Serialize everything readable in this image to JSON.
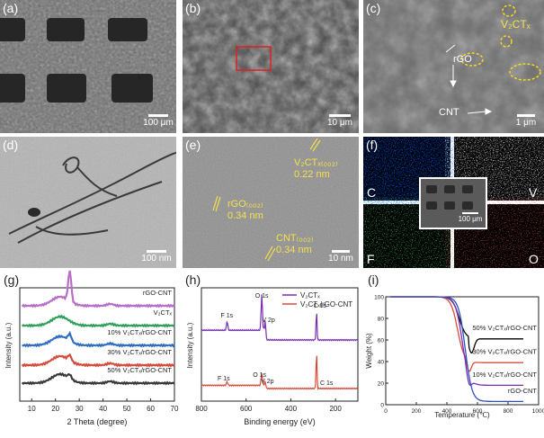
{
  "panels": {
    "a": {
      "label": "(a)",
      "scale": "100 μm"
    },
    "b": {
      "label": "(b)",
      "scale": "10 μm"
    },
    "c": {
      "label": "(c)",
      "scale": "1 μm",
      "annot_v2ctx": "V₂CTₓ",
      "annot_rgo": "rGO",
      "annot_cnt": "CNT"
    },
    "d": {
      "label": "(d)",
      "scale": "100 nm"
    },
    "e": {
      "label": "(e)",
      "scale": "10 nm",
      "v2ctx_label": "V₂CTₓ₍₀₀₂₎",
      "v2ctx_d": "0.22 nm",
      "rgo_label": "rGO₍₀₀₂₎",
      "rgo_d": "0.34 nm",
      "cnt_label": "CNT₍₀₀₂₎",
      "cnt_d": "0.34 nm"
    },
    "f": {
      "label": "(f)",
      "scale": "100 μm",
      "map_c": "C",
      "map_v": "V",
      "map_f": "F",
      "map_o": "O"
    }
  },
  "chart_data": [
    {
      "panel": "(g)",
      "type": "line",
      "xlabel": "2 Theta (degree)",
      "ylabel": "Intensity (a.u.)",
      "xlim": [
        5,
        70
      ],
      "xticks": [
        10,
        20,
        30,
        40,
        50,
        60,
        70
      ],
      "series": [
        {
          "name": "rGO-CNT",
          "color": "#b86ec8",
          "offset": 4
        },
        {
          "name": "V₂CTₓ",
          "color": "#2fa05a",
          "offset": 3
        },
        {
          "name": "10% V₂CTₓ/rGO-CNT",
          "color": "#2f6fc0",
          "offset": 2
        },
        {
          "name": "30% V₂CTₓ/rGO-CNT",
          "color": "#d94a3a",
          "offset": 1
        },
        {
          "name": "50% V₂CTₓ/rGO-CNT",
          "color": "#3a3a3a",
          "offset": 0
        }
      ]
    },
    {
      "panel": "(h)",
      "type": "line",
      "xlabel": "Binding energy (eV)",
      "ylabel": "Intensity (a.u.)",
      "xlim": [
        800,
        100
      ],
      "xticks": [
        800,
        600,
        400,
        200
      ],
      "series": [
        {
          "name": "V₂CTₓ",
          "color": "#7a2fb0"
        },
        {
          "name": "V₂CTₓ/rGO-CNT",
          "color": "#d94a3a"
        }
      ],
      "peaks_top": [
        "F 1s",
        "O 1s",
        "V 2p",
        "C 1s"
      ],
      "peaks_bottom": [
        "F 1s",
        "O 1s",
        "V 2p",
        "C 1s"
      ]
    },
    {
      "panel": "(i)",
      "type": "line",
      "xlabel": "Temperature (℃)",
      "ylabel": "Weight (%)",
      "xlim": [
        0,
        1000
      ],
      "ylim": [
        0,
        100
      ],
      "xticks": [
        0,
        200,
        400,
        600,
        800,
        1000
      ],
      "yticks": [
        0,
        20,
        40,
        60,
        80,
        100
      ],
      "series": [
        {
          "name": "50% V₂CTₓ/rGO-CNT",
          "color": "#000000",
          "final": 61
        },
        {
          "name": "30% V₂CTₓ/rGO-CNT",
          "color": "#d94a3a",
          "final": 39
        },
        {
          "name": "10% V₂CTₓ/rGO-CNT",
          "color": "#7a2fb0",
          "final": 18
        },
        {
          "name": "rGO-CNT",
          "color": "#2f4fc0",
          "final": 3
        }
      ]
    }
  ]
}
